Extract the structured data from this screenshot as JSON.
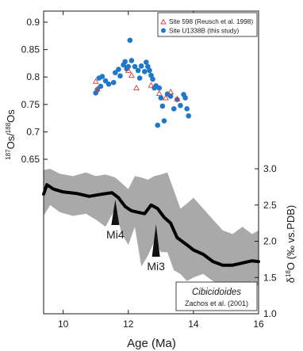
{
  "chart_data": [
    {
      "type": "scatter",
      "ylabel": "187Os/188Os",
      "ylabel_parts": {
        "sup1": "187",
        "base1": "Os/",
        "sup2": "188",
        "base2": "Os"
      },
      "yticks": [
        "0.9",
        "0.85",
        "0.8",
        "0.75",
        "0.7",
        "0.65"
      ],
      "ylim": [
        0.63,
        0.935
      ],
      "xlim": [
        9.4,
        16
      ],
      "legend_position": "top-right",
      "series": [
        {
          "name": "Site 598 (Reusch et al. 1998)",
          "marker": "open-triangle",
          "color": "#e23a36",
          "points": [
            {
              "x": 11.0,
              "y": 0.792
            },
            {
              "x": 11.05,
              "y": 0.778
            },
            {
              "x": 12.0,
              "y": 0.812
            },
            {
              "x": 12.1,
              "y": 0.803
            },
            {
              "x": 12.25,
              "y": 0.78
            },
            {
              "x": 12.7,
              "y": 0.785
            },
            {
              "x": 12.95,
              "y": 0.77
            },
            {
              "x": 13.15,
              "y": 0.762
            },
            {
              "x": 13.3,
              "y": 0.773
            },
            {
              "x": 13.5,
              "y": 0.76
            }
          ]
        },
        {
          "name": "Site U1338B (this study)",
          "marker": "filled-circle",
          "color": "#1f77c8",
          "points": [
            {
              "x": 11.0,
              "y": 0.771
            },
            {
              "x": 11.05,
              "y": 0.777
            },
            {
              "x": 11.1,
              "y": 0.798
            },
            {
              "x": 11.15,
              "y": 0.783
            },
            {
              "x": 11.2,
              "y": 0.801
            },
            {
              "x": 11.3,
              "y": 0.793
            },
            {
              "x": 11.4,
              "y": 0.787
            },
            {
              "x": 11.55,
              "y": 0.79
            },
            {
              "x": 11.6,
              "y": 0.808
            },
            {
              "x": 11.7,
              "y": 0.814
            },
            {
              "x": 11.75,
              "y": 0.802
            },
            {
              "x": 11.85,
              "y": 0.822
            },
            {
              "x": 11.9,
              "y": 0.828
            },
            {
              "x": 11.95,
              "y": 0.815
            },
            {
              "x": 12.0,
              "y": 0.819
            },
            {
              "x": 12.05,
              "y": 0.867
            },
            {
              "x": 12.1,
              "y": 0.83
            },
            {
              "x": 12.2,
              "y": 0.819
            },
            {
              "x": 12.3,
              "y": 0.812
            },
            {
              "x": 12.35,
              "y": 0.798
            },
            {
              "x": 12.4,
              "y": 0.82
            },
            {
              "x": 12.5,
              "y": 0.81
            },
            {
              "x": 12.55,
              "y": 0.827
            },
            {
              "x": 12.6,
              "y": 0.819
            },
            {
              "x": 12.65,
              "y": 0.812
            },
            {
              "x": 12.7,
              "y": 0.803
            },
            {
              "x": 12.75,
              "y": 0.796
            },
            {
              "x": 12.8,
              "y": 0.78
            },
            {
              "x": 12.85,
              "y": 0.784
            },
            {
              "x": 12.9,
              "y": 0.712
            },
            {
              "x": 12.95,
              "y": 0.78
            },
            {
              "x": 13.0,
              "y": 0.762
            },
            {
              "x": 13.05,
              "y": 0.747
            },
            {
              "x": 13.1,
              "y": 0.72
            },
            {
              "x": 13.2,
              "y": 0.769
            },
            {
              "x": 13.3,
              "y": 0.765
            },
            {
              "x": 13.4,
              "y": 0.742
            },
            {
              "x": 13.5,
              "y": 0.759
            },
            {
              "x": 13.6,
              "y": 0.748
            },
            {
              "x": 13.7,
              "y": 0.768
            },
            {
              "x": 13.75,
              "y": 0.762
            },
            {
              "x": 13.8,
              "y": 0.742
            },
            {
              "x": 13.85,
              "y": 0.729
            }
          ]
        }
      ]
    },
    {
      "type": "area",
      "ylabel": "δ18O (‰ vs.PDB)",
      "ylabel_parts": {
        "base1": "δ",
        "sup1": "18",
        "base2": "O (‰ vs.PDB)"
      },
      "yticks": [
        "3.0",
        "2.5",
        "2.0",
        "1.5",
        "1.0"
      ],
      "ylim": [
        1.0,
        3.0
      ],
      "xlim": [
        9.4,
        16
      ],
      "xlabel": "Age (Ma)",
      "xticks": [
        "10",
        "12",
        "14",
        "16"
      ],
      "legend_box": {
        "line1": "Cibicidoides",
        "line2": "Zachos et al. (2001)"
      },
      "annotations": [
        {
          "label": "Mi4",
          "x": 11.6
        },
        {
          "label": "Mi3",
          "x": 12.85
        }
      ],
      "band_color": "#a9a9a9",
      "curve_color": "#000000",
      "mean_curve": {
        "x": [
          9.4,
          9.5,
          9.7,
          10.0,
          10.4,
          10.8,
          11.2,
          11.5,
          11.7,
          11.9,
          12.1,
          12.3,
          12.5,
          12.7,
          12.9,
          13.1,
          13.3,
          13.5,
          13.8,
          14.0,
          14.3,
          14.6,
          14.9,
          15.2,
          15.5,
          15.8,
          16.0
        ],
        "y": [
          2.65,
          2.78,
          2.72,
          2.68,
          2.66,
          2.62,
          2.65,
          2.67,
          2.6,
          2.48,
          2.42,
          2.4,
          2.38,
          2.5,
          2.45,
          2.33,
          2.25,
          2.05,
          1.95,
          1.88,
          1.82,
          1.72,
          1.67,
          1.67,
          1.7,
          1.73,
          1.72
        ]
      },
      "band_upper": {
        "x": [
          9.4,
          9.6,
          9.9,
          10.3,
          10.7,
          11.0,
          11.3,
          11.6,
          11.8,
          12.0,
          12.2,
          12.4,
          12.6,
          12.8,
          13.0,
          13.2,
          13.4,
          13.6,
          13.8,
          14.0,
          14.3,
          14.6,
          14.9,
          15.2,
          15.5,
          15.8,
          16.0
        ],
        "y": [
          2.98,
          3.0,
          2.93,
          2.9,
          2.95,
          2.9,
          2.92,
          2.88,
          2.8,
          2.72,
          2.9,
          2.88,
          2.85,
          2.9,
          2.92,
          2.95,
          2.7,
          2.45,
          2.52,
          2.6,
          2.45,
          2.3,
          2.15,
          2.1,
          2.2,
          2.1,
          2.15
        ]
      },
      "band_lower": {
        "x": [
          9.4,
          9.6,
          9.9,
          10.3,
          10.7,
          11.0,
          11.3,
          11.6,
          11.8,
          12.0,
          12.2,
          12.4,
          12.6,
          12.8,
          13.0,
          13.2,
          13.4,
          13.6,
          13.8,
          14.0,
          14.3,
          14.6,
          14.9,
          15.2,
          15.5,
          15.8,
          16.0
        ],
        "y": [
          2.35,
          2.5,
          2.4,
          2.35,
          2.38,
          2.3,
          2.2,
          2.45,
          2.1,
          1.95,
          2.2,
          1.65,
          1.8,
          2.0,
          1.85,
          1.85,
          1.6,
          1.55,
          1.45,
          1.5,
          1.55,
          1.45,
          1.35,
          1.42,
          1.35,
          1.45,
          1.38
        ]
      }
    }
  ]
}
